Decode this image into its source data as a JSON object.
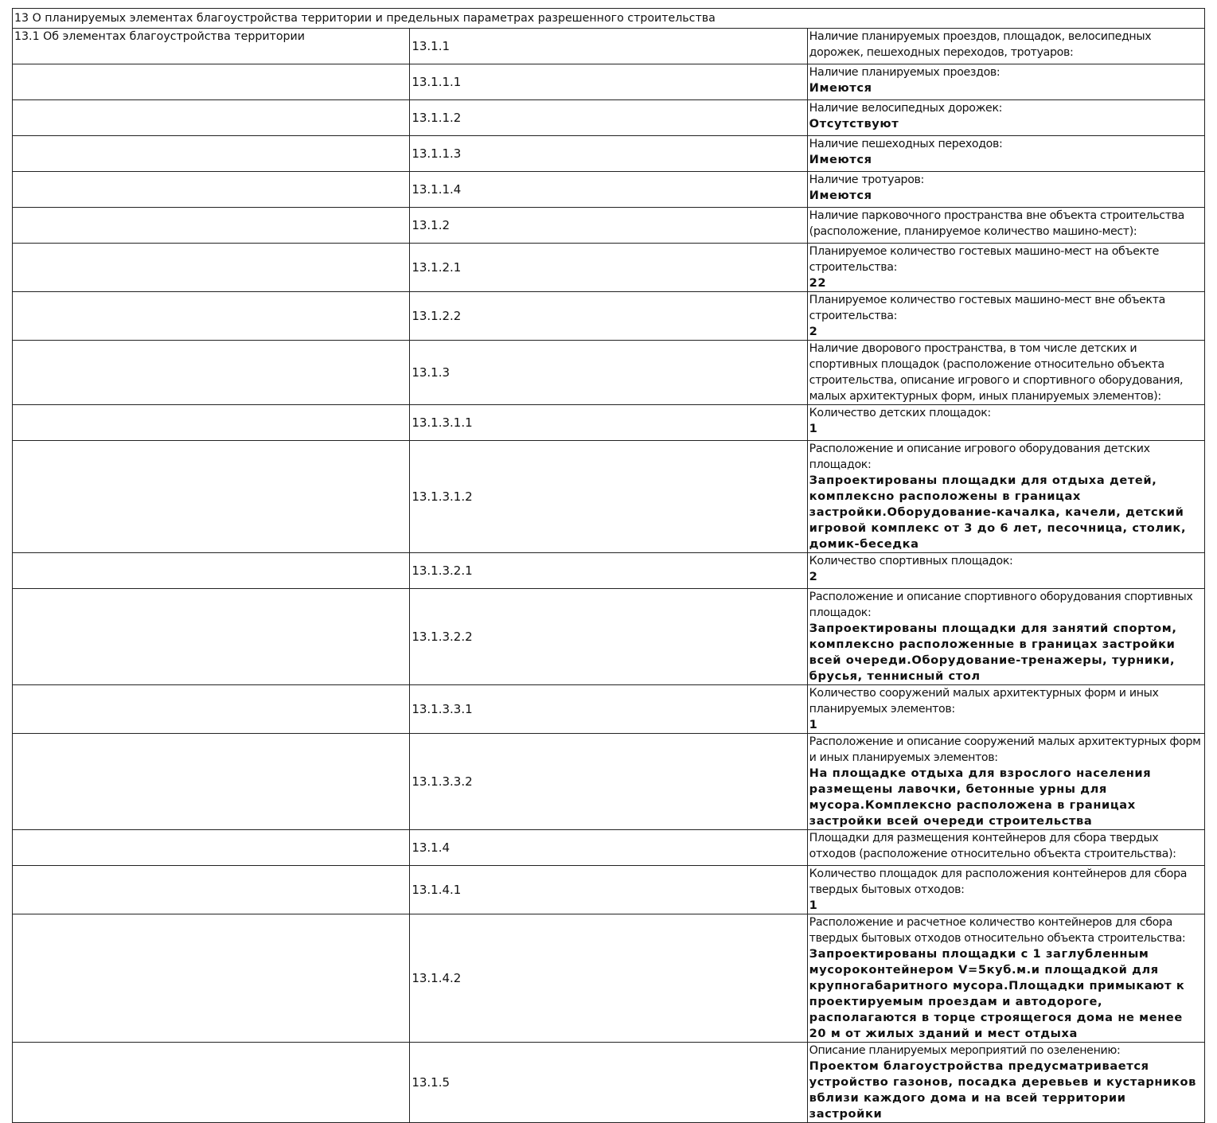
{
  "section_title": "13 О планируемых элементах благоустройства территории и предельных параметрах разрешенного строительства",
  "rows": [
    {
      "group": "13.1 Об элементах благоустройства территории",
      "code": "13.1.1",
      "label": "Наличие планируемых проездов, площадок, велосипедных дорожек, пешеходных переходов, тротуаров:",
      "value": ""
    },
    {
      "group": "",
      "code": "13.1.1.1",
      "label": "Наличие планируемых проездов:",
      "value": "Имеются"
    },
    {
      "group": "",
      "code": "13.1.1.2",
      "label": "Наличие велосипедных дорожек:",
      "value": "Отсутствуют"
    },
    {
      "group": "",
      "code": "13.1.1.3",
      "label": "Наличие пешеходных переходов:",
      "value": "Имеются"
    },
    {
      "group": "",
      "code": "13.1.1.4",
      "label": "Наличие тротуаров:",
      "value": "Имеются"
    },
    {
      "group": "",
      "code": "13.1.2",
      "label": "Наличие парковочного пространства вне объекта строительства (расположение, планируемое количество машино-мест):",
      "value": ""
    },
    {
      "group": "",
      "code": "13.1.2.1",
      "label": "Планируемое количество гостевых машино-мест на объекте строительства:",
      "value": "22"
    },
    {
      "group": "",
      "code": "13.1.2.2",
      "label": "Планируемое количество гостевых машино-мест вне объекта строительства:",
      "value": "2"
    },
    {
      "group": "",
      "code": "13.1.3",
      "label": "Наличие дворового пространства, в том числе детских и спортивных площадок (расположение относительно объекта строительства, описание игрового и спортивного оборудования, малых архитектурных форм, иных планируемых элементов):",
      "value": ""
    },
    {
      "group": "",
      "code": "13.1.3.1.1",
      "label": "Количество детских площадок:",
      "value": "1"
    },
    {
      "group": "",
      "code": "13.1.3.1.2",
      "label": "Расположение и описание игрового оборудования детских площадок:",
      "value": "Запроектированы площадки для отдыха детей, комплексно расположены в границах застройки.Оборудование-качалка, качели, детский игровой комплекс от 3 до 6 лет, песочница, столик, домик-беседка"
    },
    {
      "group": "",
      "code": "13.1.3.2.1",
      "label": "Количество спортивных площадок:",
      "value": "2"
    },
    {
      "group": "",
      "code": "13.1.3.2.2",
      "label": "Расположение и описание спортивного оборудования спортивных площадок:",
      "value": "Запроектированы площадки для занятий спортом, комплексно расположенные в границах застройки всей очереди.Оборудование-тренажеры, турники, брусья, теннисный стол"
    },
    {
      "group": "",
      "code": "13.1.3.3.1",
      "label": "Количество сооружений малых архитектурных форм и иных планируемых элементов:",
      "value": "1"
    },
    {
      "group": "",
      "code": "13.1.3.3.2",
      "label": "Расположение и описание сооружений малых архитектурных форм и иных планируемых элементов:",
      "value": "На площадке отдыха для взрослого населения размещены лавочки, бетонные урны для мусора.Комплексно расположена в границах застройки всей очереди строительства"
    },
    {
      "group": "",
      "code": "13.1.4",
      "label": "Площадки для размещения контейнеров для сбора твердых отходов (расположение относительно объекта строительства):",
      "value": ""
    },
    {
      "group": "",
      "code": "13.1.4.1",
      "label": "Количество площадок для расположения контейнеров для сбора твердых бытовых отходов:",
      "value": "1"
    },
    {
      "group": "",
      "code": "13.1.4.2",
      "label": "Расположение и расчетное количество контейнеров для сбора твердых бытовых отходов относительно объекта строительства:",
      "value": "Запроектированы площадки с 1 заглубленным мусороконтейнером V=5куб.м.и площадкой для крупногабаритного мусора.Площадки примыкают к проектируемым проездам и автодороге, располагаются в торце строящегося дома не менее 20 м от жилых зданий и мест отдыха"
    },
    {
      "group": "",
      "code": "13.1.5",
      "label": "Описание планируемых мероприятий по озеленению:",
      "value": "Проектом благоустройства предусматривается устройство газонов, посадка деревьев и кустарников вблизи каждого дома и на всей территории застройки"
    }
  ]
}
